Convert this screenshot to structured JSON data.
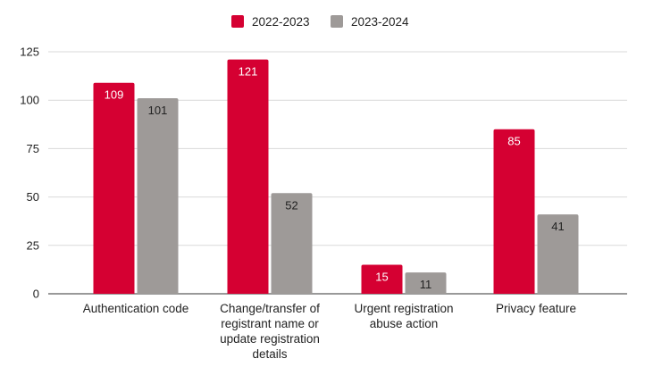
{
  "chart_data": {
    "type": "bar",
    "categories": [
      [
        "Authentication code"
      ],
      [
        "Change/transfer of",
        "registrant name or",
        "update registration",
        "details"
      ],
      [
        "Urgent registration",
        "abuse action"
      ],
      [
        "Privacy feature"
      ]
    ],
    "series": [
      {
        "name": "2022-2023",
        "color": "#d50032",
        "label_color": "#ffffff",
        "values": [
          109,
          121,
          15,
          85
        ]
      },
      {
        "name": "2023-2024",
        "color": "#9e9a98",
        "label_color": "#222222",
        "values": [
          101,
          52,
          11,
          41
        ]
      }
    ],
    "y_ticks": [
      0,
      25,
      50,
      75,
      100,
      125
    ],
    "ylim": [
      0,
      125
    ],
    "grid": true,
    "legend_position": "top-center",
    "title": "",
    "xlabel": "",
    "ylabel": ""
  }
}
